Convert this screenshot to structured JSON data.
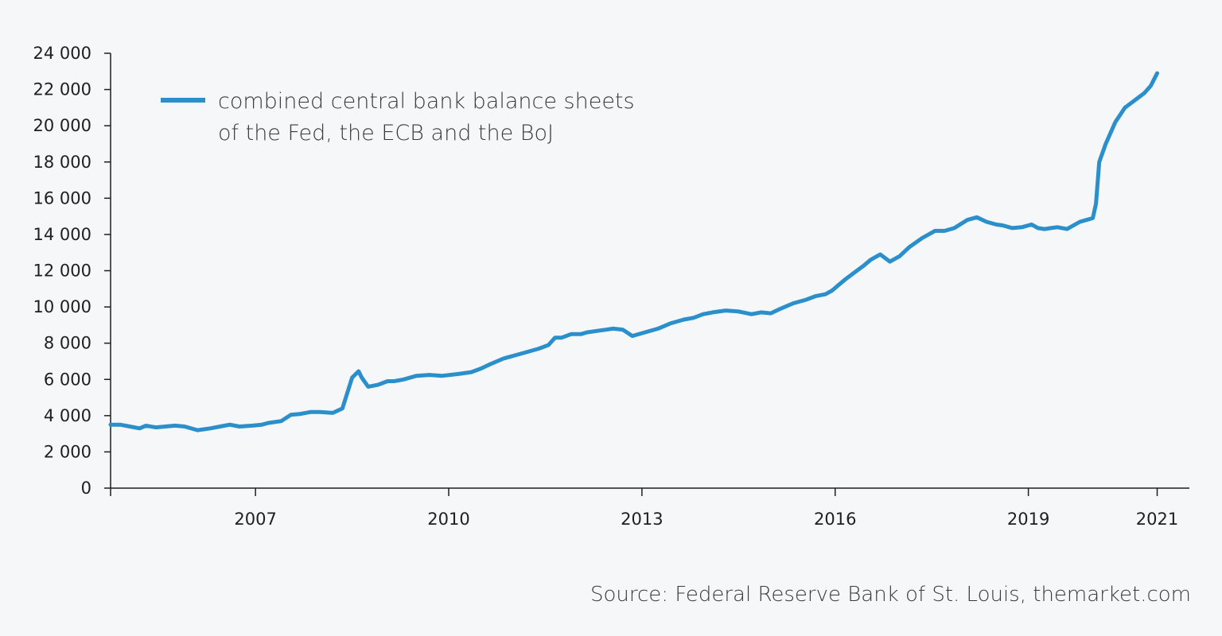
{
  "colors": {
    "series": "#2b8fcc",
    "axis": "#1f1f1f",
    "background": "#f5f7f9"
  },
  "source": "Source: Federal Reserve Bank of St. Louis, themarket.com",
  "chart_data": {
    "type": "line",
    "title": "",
    "xlabel": "",
    "ylabel": "",
    "ylim": [
      0,
      24000
    ],
    "xlim": [
      2004.75,
      2021.5
    ],
    "y_ticks": [
      0,
      2000,
      4000,
      6000,
      8000,
      10000,
      12000,
      14000,
      16000,
      18000,
      20000,
      22000,
      24000
    ],
    "y_tick_labels": [
      "0",
      "2 000",
      "4 000",
      "6 000",
      "8 000",
      "10 000",
      "12 000",
      "14 000",
      "16 000",
      "18 000",
      "20 000",
      "22 000",
      "24 000"
    ],
    "x_ticks": [
      2007,
      2010,
      2013,
      2016,
      2019,
      2021
    ],
    "x_tick_labels": [
      "2007",
      "2010",
      "2013",
      "2016",
      "2019",
      "2021"
    ],
    "legend": {
      "position": "top-left",
      "lines": [
        "combined central bank balance sheets",
        "of the Fed, the ECB and the BoJ"
      ]
    },
    "series": [
      {
        "name": "combined central bank balance sheets of the Fed, the ECB and the BoJ",
        "x": [
          2004.75,
          2004.9,
          2005.05,
          2005.2,
          2005.3,
          2005.45,
          2005.6,
          2005.75,
          2005.9,
          2006.1,
          2006.3,
          2006.45,
          2006.6,
          2006.75,
          2006.95,
          2007.1,
          2007.2,
          2007.4,
          2007.55,
          2007.7,
          2007.85,
          2008.0,
          2008.2,
          2008.35,
          2008.5,
          2008.6,
          2008.65,
          2008.75,
          2008.9,
          2009.05,
          2009.15,
          2009.3,
          2009.5,
          2009.7,
          2009.9,
          2010.15,
          2010.35,
          2010.5,
          2010.65,
          2010.85,
          2011.0,
          2011.2,
          2011.4,
          2011.55,
          2011.65,
          2011.75,
          2011.9,
          2012.05,
          2012.15,
          2012.35,
          2012.55,
          2012.7,
          2012.85,
          2013.05,
          2013.25,
          2013.45,
          2013.65,
          2013.8,
          2013.95,
          2014.1,
          2014.3,
          2014.5,
          2014.7,
          2014.85,
          2015.0,
          2015.15,
          2015.35,
          2015.55,
          2015.7,
          2015.85,
          2015.95,
          2016.05,
          2016.15,
          2016.3,
          2016.45,
          2016.55,
          2016.7,
          2016.85,
          2017.0,
          2017.15,
          2017.35,
          2017.55,
          2017.7,
          2017.85,
          2018.05,
          2018.2,
          2018.35,
          2018.5,
          2018.6,
          2018.75,
          2018.9,
          2019.05,
          2019.15,
          2019.25,
          2019.35,
          2019.45,
          2019.6,
          2019.7,
          2019.8,
          2019.9,
          2020.0,
          2020.05,
          2020.1,
          2020.2,
          2020.35,
          2020.5,
          2020.65,
          2020.8,
          2020.9,
          2021.0
        ],
        "values": [
          3500,
          3500,
          3400,
          3300,
          3450,
          3350,
          3400,
          3450,
          3400,
          3200,
          3300,
          3400,
          3500,
          3400,
          3450,
          3500,
          3600,
          3700,
          4050,
          4100,
          4200,
          4200,
          4150,
          4400,
          6100,
          6450,
          6100,
          5600,
          5700,
          5900,
          5900,
          6000,
          6200,
          6250,
          6200,
          6300,
          6400,
          6600,
          6850,
          7150,
          7300,
          7500,
          7700,
          7900,
          8300,
          8300,
          8500,
          8500,
          8600,
          8700,
          8800,
          8750,
          8400,
          8600,
          8800,
          9100,
          9300,
          9400,
          9600,
          9700,
          9800,
          9750,
          9600,
          9700,
          9650,
          9900,
          10200,
          10400,
          10600,
          10700,
          10900,
          11200,
          11500,
          11900,
          12300,
          12600,
          12900,
          12500,
          12800,
          13300,
          13800,
          14200,
          14200,
          14350,
          14800,
          14950,
          14700,
          14550,
          14500,
          14350,
          14400,
          14550,
          14350,
          14300,
          14350,
          14400,
          14300,
          14500,
          14700,
          14800,
          14900,
          15700,
          18000,
          19000,
          20200,
          21000,
          21400,
          21800,
          22200,
          22900
        ]
      }
    ]
  }
}
